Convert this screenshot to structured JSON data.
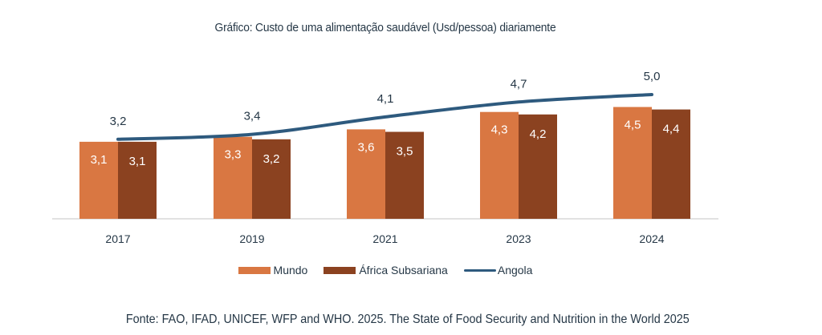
{
  "chart_data": {
    "type": "bar",
    "title": "Gráfico: Custo de uma alimentação saudável (Usd/pessoa) diariamente",
    "xlabel": "",
    "ylabel": "",
    "ylim": [
      0,
      5.5
    ],
    "grid": false,
    "legend_position": "bottom",
    "categories": [
      "2017",
      "2019",
      "2021",
      "2023",
      "2024"
    ],
    "series": [
      {
        "name": "Mundo",
        "type": "bar",
        "color": "#D97742",
        "values": [
          3.1,
          3.3,
          3.6,
          4.3,
          4.5
        ],
        "labels": [
          "3,1",
          "3,3",
          "3,6",
          "4,3",
          "4,5"
        ]
      },
      {
        "name": "África Subsariana",
        "type": "bar",
        "color": "#8B4220",
        "values": [
          3.1,
          3.2,
          3.5,
          4.2,
          4.4
        ],
        "labels": [
          "3,1",
          "3,2",
          "3,5",
          "4,2",
          "4,4"
        ]
      },
      {
        "name": "Angola",
        "type": "line",
        "color": "#2E5A7E",
        "values": [
          3.2,
          3.4,
          4.1,
          4.7,
          5.0
        ],
        "labels": [
          "3,2",
          "3,4",
          "4,1",
          "4,7",
          "5,0"
        ]
      }
    ],
    "source": "Fonte: FAO, IFAD, UNICEF, WFP and WHO. 2025. The State of Food Security and Nutrition in the World 2025"
  }
}
